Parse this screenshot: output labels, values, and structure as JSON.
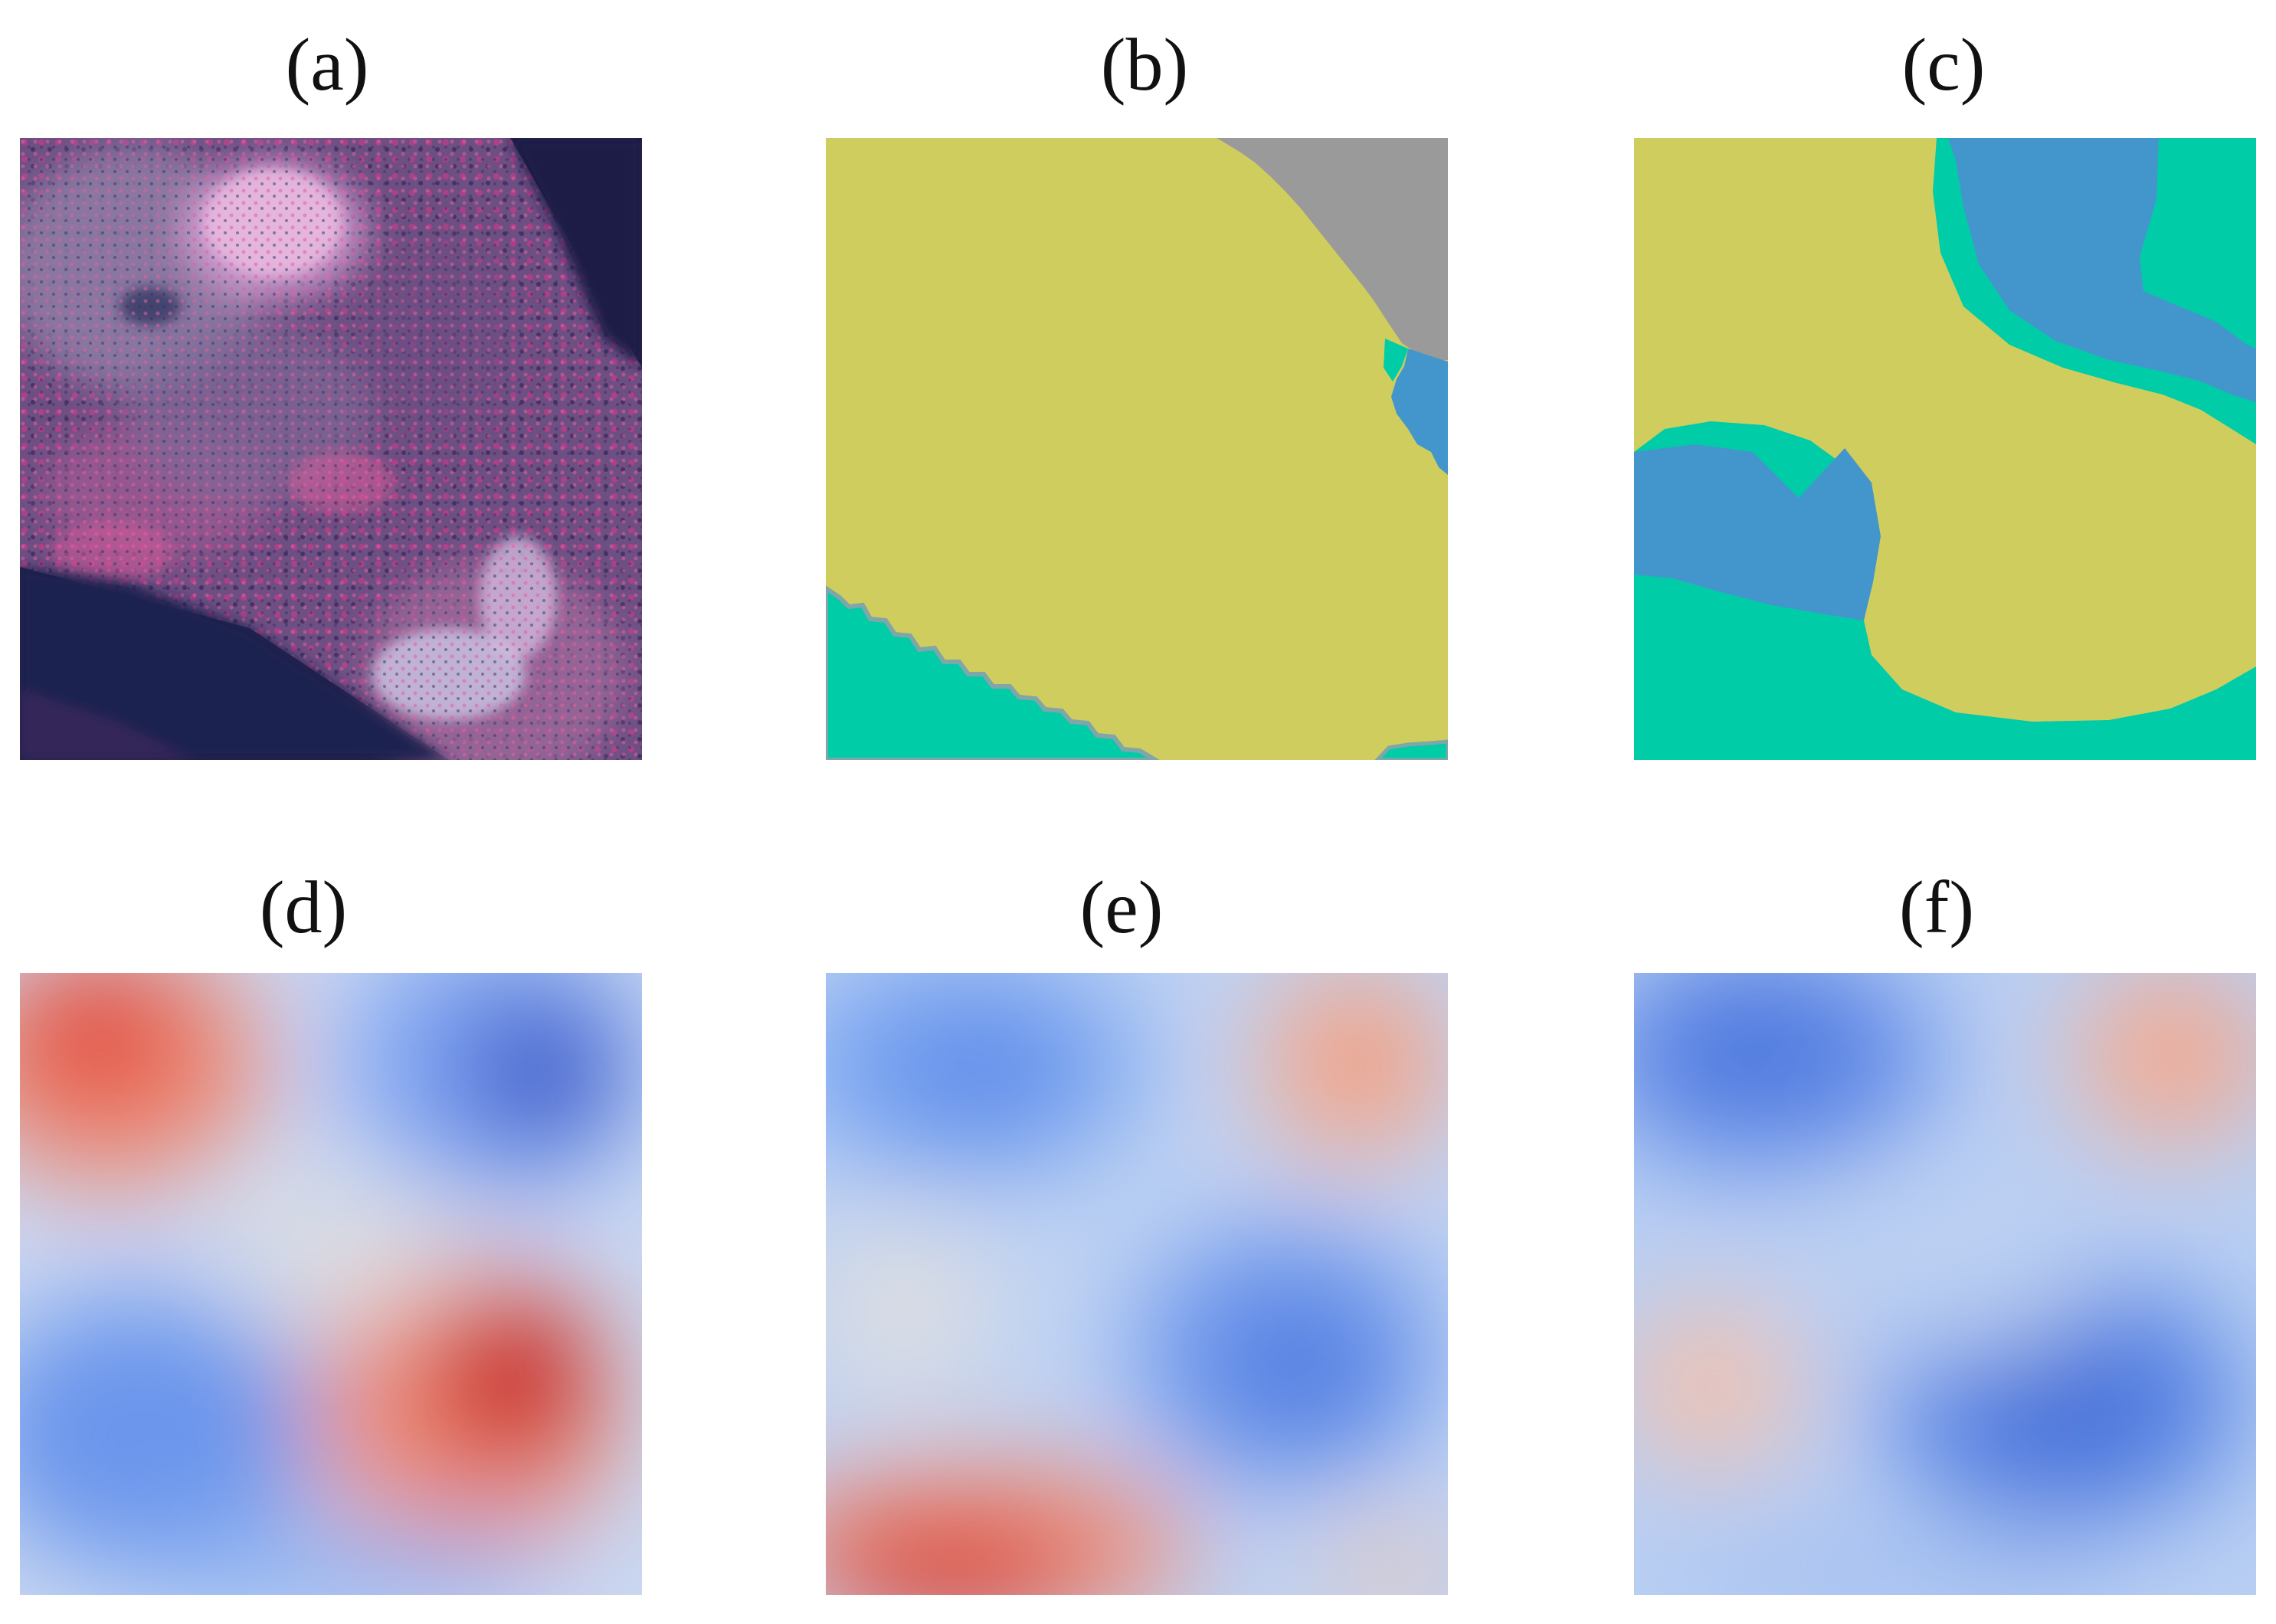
{
  "figure": {
    "panels": [
      {
        "label": "(a)",
        "kind": "aerial-image"
      },
      {
        "label": "(b)",
        "kind": "segmentation-map"
      },
      {
        "label": "(c)",
        "kind": "segmentation-map"
      },
      {
        "label": "(d)",
        "kind": "heatmap"
      },
      {
        "label": "(e)",
        "kind": "heatmap"
      },
      {
        "label": "(f)",
        "kind": "heatmap"
      }
    ],
    "segmentation_colors": {
      "olive": "#cfcd5e",
      "gray": "#9a9a9a",
      "teal": "#00cca8",
      "blue": "#4396cc",
      "boundary": "#7fa6a8"
    },
    "heatmap_colors": {
      "low": "#3a57c8",
      "mid": "#dcdde2",
      "high": "#c70a12"
    }
  }
}
